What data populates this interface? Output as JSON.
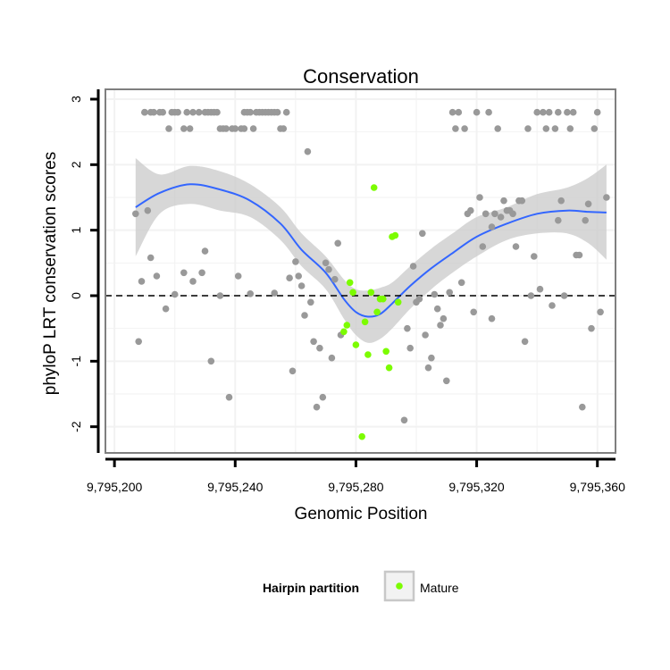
{
  "chart_data": {
    "type": "scatter",
    "title": "Conservation",
    "xlabel": "Genomic Position",
    "ylabel": "phyloP LRT conservation scores",
    "xlim": [
      9795197,
      9795366
    ],
    "ylim": [
      -2.4,
      3.15
    ],
    "x_ticks": [
      9795200,
      9795240,
      9795280,
      9795320,
      9795360
    ],
    "x_tick_labels": [
      "9,795,200",
      "9,795,240",
      "9,795,280",
      "9,795,320",
      "9,795,360"
    ],
    "y_ticks": [
      -2,
      -1,
      0,
      1,
      2,
      3
    ],
    "y_tick_labels": [
      "-2",
      "-1",
      "0",
      "1",
      "2",
      "3"
    ],
    "reference_line": {
      "y": 0,
      "style": "dashed"
    },
    "grid": true,
    "colors": {
      "other": "#999999",
      "mature": "#7cfc00",
      "smooth_line": "#3366ff",
      "band": "#cccccc",
      "panel_border": "#7f7f7f",
      "grid": "#f2f2f2"
    },
    "legend": {
      "title": "Hairpin partition",
      "entries": [
        {
          "label": "Mature",
          "color": "#7cfc00"
        }
      ],
      "position": "bottom"
    },
    "series": [
      {
        "name": "Other",
        "points": [
          [
            9795207,
            1.25
          ],
          [
            9795208,
            -0.7
          ],
          [
            9795209,
            0.22
          ],
          [
            9795210,
            2.8
          ],
          [
            9795211,
            1.3
          ],
          [
            9795212,
            2.8
          ],
          [
            9795212,
            0.58
          ],
          [
            9795213,
            2.8
          ],
          [
            9795214,
            0.3
          ],
          [
            9795215,
            2.8
          ],
          [
            9795216,
            2.8
          ],
          [
            9795217,
            -0.2
          ],
          [
            9795218,
            2.55
          ],
          [
            9795219,
            2.8
          ],
          [
            9795220,
            2.8
          ],
          [
            9795220,
            0.02
          ],
          [
            9795221,
            2.8
          ],
          [
            9795223,
            2.55
          ],
          [
            9795223,
            0.35
          ],
          [
            9795224,
            2.8
          ],
          [
            9795225,
            2.55
          ],
          [
            9795226,
            2.8
          ],
          [
            9795226,
            0.22
          ],
          [
            9795228,
            2.8
          ],
          [
            9795229,
            0.35
          ],
          [
            9795230,
            2.8
          ],
          [
            9795230,
            0.68
          ],
          [
            9795231,
            2.8
          ],
          [
            9795232,
            2.8
          ],
          [
            9795232,
            -1.0
          ],
          [
            9795233,
            2.8
          ],
          [
            9795234,
            2.8
          ],
          [
            9795235,
            2.55
          ],
          [
            9795235,
            0.0
          ],
          [
            9795236,
            2.55
          ],
          [
            9795237,
            2.55
          ],
          [
            9795238,
            -1.55
          ],
          [
            9795239,
            2.55
          ],
          [
            9795240,
            2.55
          ],
          [
            9795241,
            0.3
          ],
          [
            9795242,
            2.55
          ],
          [
            9795243,
            2.8
          ],
          [
            9795244,
            2.8
          ],
          [
            9795245,
            0.03
          ],
          [
            9795245,
            2.8
          ],
          [
            9795246,
            2.55
          ],
          [
            9795247,
            2.8
          ],
          [
            9795248,
            2.8
          ],
          [
            9795249,
            2.8
          ],
          [
            9795250,
            2.8
          ],
          [
            9795251,
            2.8
          ],
          [
            9795252,
            2.8
          ],
          [
            9795253,
            2.8
          ],
          [
            9795253,
            0.04
          ],
          [
            9795254,
            2.8
          ],
          [
            9795255,
            2.55
          ],
          [
            9795256,
            2.55
          ],
          [
            9795257,
            2.8
          ],
          [
            9795258,
            0.27
          ],
          [
            9795259,
            -1.15
          ],
          [
            9795260,
            0.52
          ],
          [
            9795261,
            0.3
          ],
          [
            9795262,
            0.15
          ],
          [
            9795263,
            -0.3
          ],
          [
            9795264,
            2.2
          ],
          [
            9795265,
            -0.1
          ],
          [
            9795266,
            -0.7
          ],
          [
            9795267,
            -1.7
          ],
          [
            9795268,
            -0.8
          ],
          [
            9795269,
            -1.55
          ],
          [
            9795270,
            0.5
          ],
          [
            9795271,
            0.4
          ],
          [
            9795272,
            -0.95
          ],
          [
            9795273,
            0.25
          ],
          [
            9795274,
            0.8
          ],
          [
            9795275,
            -0.6
          ],
          [
            9795296,
            -1.9
          ],
          [
            9795297,
            -0.5
          ],
          [
            9795298,
            -0.8
          ],
          [
            9795299,
            0.45
          ],
          [
            9795300,
            -0.1
          ],
          [
            9795301,
            -0.05
          ],
          [
            9795302,
            0.95
          ],
          [
            9795303,
            -0.6
          ],
          [
            9795304,
            -1.1
          ],
          [
            9795305,
            -0.95
          ],
          [
            9795306,
            0.02
          ],
          [
            9795307,
            -0.2
          ],
          [
            9795308,
            -0.45
          ],
          [
            9795309,
            -0.35
          ],
          [
            9795310,
            -1.3
          ],
          [
            9795311,
            0.05
          ],
          [
            9795312,
            2.8
          ],
          [
            9795313,
            2.55
          ],
          [
            9795314,
            2.8
          ],
          [
            9795315,
            0.2
          ],
          [
            9795316,
            2.55
          ],
          [
            9795317,
            1.25
          ],
          [
            9795318,
            1.3
          ],
          [
            9795319,
            -0.25
          ],
          [
            9795320,
            2.8
          ],
          [
            9795321,
            1.5
          ],
          [
            9795322,
            0.75
          ],
          [
            9795323,
            1.25
          ],
          [
            9795324,
            2.8
          ],
          [
            9795325,
            -0.35
          ],
          [
            9795326,
            1.25
          ],
          [
            9795327,
            2.55
          ],
          [
            9795328,
            1.2
          ],
          [
            9795329,
            1.45
          ],
          [
            9795330,
            1.3
          ],
          [
            9795331,
            1.3
          ],
          [
            9795332,
            1.25
          ],
          [
            9795333,
            0.75
          ],
          [
            9795334,
            1.45
          ],
          [
            9795335,
            1.45
          ],
          [
            9795336,
            -0.7
          ],
          [
            9795337,
            2.55
          ],
          [
            9795338,
            0.0
          ],
          [
            9795339,
            0.6
          ],
          [
            9795340,
            2.8
          ],
          [
            9795341,
            0.1
          ],
          [
            9795342,
            2.8
          ],
          [
            9795343,
            2.55
          ],
          [
            9795344,
            2.8
          ],
          [
            9795345,
            -0.15
          ],
          [
            9795346,
            2.55
          ],
          [
            9795347,
            2.8
          ],
          [
            9795348,
            1.45
          ],
          [
            9795349,
            0.0
          ],
          [
            9795350,
            2.8
          ],
          [
            9795351,
            2.55
          ],
          [
            9795352,
            2.8
          ],
          [
            9795353,
            0.62
          ],
          [
            9795354,
            0.62
          ],
          [
            9795355,
            -1.7
          ],
          [
            9795356,
            1.15
          ],
          [
            9795357,
            1.4
          ],
          [
            9795358,
            -0.5
          ],
          [
            9795359,
            2.55
          ],
          [
            9795360,
            2.8
          ],
          [
            9795361,
            -0.25
          ],
          [
            9795363,
            1.5
          ],
          [
            9795210,
            2.8
          ],
          [
            9795243,
            2.55
          ],
          [
            9795325,
            1.05
          ],
          [
            9795347,
            1.15
          ]
        ]
      },
      {
        "name": "Mature",
        "points": [
          [
            9795276,
            -0.55
          ],
          [
            9795277,
            -0.45
          ],
          [
            9795278,
            0.2
          ],
          [
            9795279,
            0.05
          ],
          [
            9795280,
            -0.75
          ],
          [
            9795282,
            -2.15
          ],
          [
            9795283,
            -0.4
          ],
          [
            9795284,
            -0.9
          ],
          [
            9795285,
            0.05
          ],
          [
            9795286,
            1.65
          ],
          [
            9795287,
            -0.25
          ],
          [
            9795288,
            -0.05
          ],
          [
            9795289,
            -0.05
          ],
          [
            9795290,
            -0.85
          ],
          [
            9795291,
            -1.1
          ],
          [
            9795292,
            0.9
          ],
          [
            9795293,
            0.92
          ],
          [
            9795294,
            -0.1
          ]
        ]
      }
    ],
    "smooth": {
      "x": [
        9795207,
        9795215,
        9795225,
        9795235,
        9795245,
        9795255,
        9795262,
        9795270,
        9795276,
        9795280,
        9795284,
        9795288,
        9795292,
        9795298,
        9795305,
        9795312,
        9795320,
        9795330,
        9795340,
        9795350,
        9795357,
        9795363
      ],
      "y": [
        1.35,
        1.57,
        1.7,
        1.62,
        1.45,
        1.1,
        0.7,
        0.35,
        -0.05,
        -0.25,
        -0.32,
        -0.28,
        -0.12,
        0.15,
        0.42,
        0.65,
        0.9,
        1.1,
        1.25,
        1.3,
        1.28,
        1.27
      ],
      "lower": [
        0.6,
        1.25,
        1.4,
        1.3,
        1.2,
        0.85,
        0.45,
        0.1,
        -0.35,
        -0.6,
        -0.72,
        -0.66,
        -0.5,
        -0.2,
        0.1,
        0.35,
        0.6,
        0.85,
        0.95,
        0.95,
        0.8,
        0.55
      ],
      "upper": [
        2.1,
        1.85,
        1.98,
        1.9,
        1.7,
        1.35,
        0.95,
        0.6,
        0.25,
        0.1,
        0.08,
        0.12,
        0.2,
        0.45,
        0.72,
        0.95,
        1.2,
        1.35,
        1.55,
        1.65,
        1.8,
        2.0
      ]
    }
  }
}
